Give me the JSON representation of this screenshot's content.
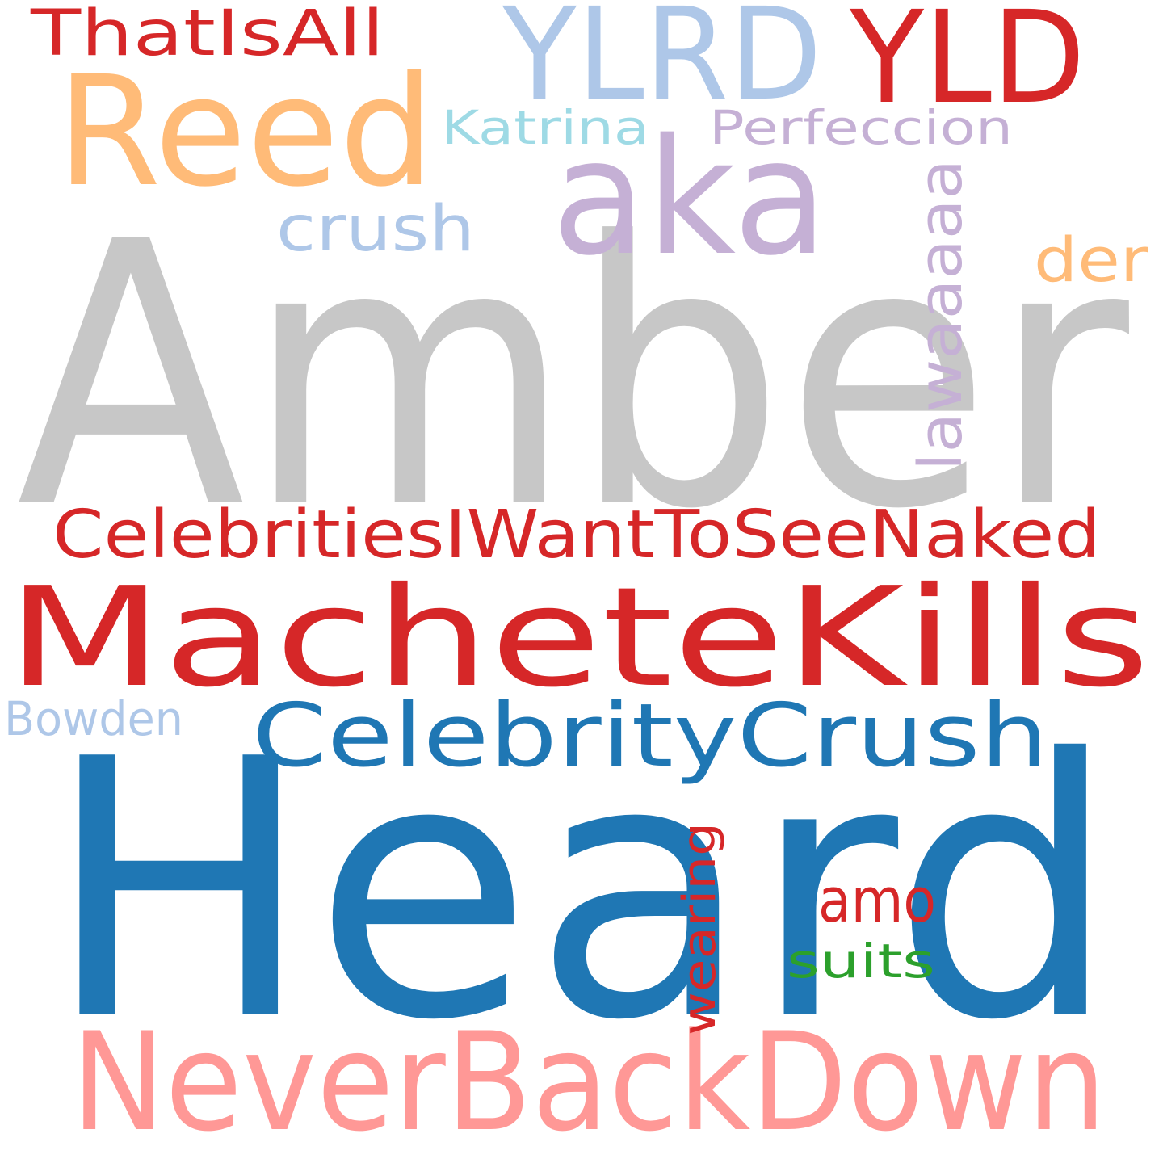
{
  "words": [
    {
      "key": "amber",
      "text": "Amber",
      "color": "#c7c7c7",
      "vertical": false
    },
    {
      "key": "heard",
      "text": "Heard",
      "color": "#1f77b4",
      "vertical": false
    },
    {
      "key": "machetekills",
      "text": "MacheteKills",
      "color": "#d62728",
      "vertical": false
    },
    {
      "key": "neverbackdown",
      "text": "NeverBackDown",
      "color": "#ff9896",
      "vertical": false
    },
    {
      "key": "reed",
      "text": "Reed",
      "color": "#ffbb78",
      "vertical": false
    },
    {
      "key": "aka",
      "text": "aka",
      "color": "#c5b0d5",
      "vertical": false
    },
    {
      "key": "ylrd",
      "text": "YLRD",
      "color": "#aec7e8",
      "vertical": false
    },
    {
      "key": "yld",
      "text": "YLD",
      "color": "#d62728",
      "vertical": false
    },
    {
      "key": "celebritycrush",
      "text": "CelebrityCrush",
      "color": "#1f77b4",
      "vertical": false
    },
    {
      "key": "celebritiesiwanttoseenaked",
      "text": "CelebritiesIWantToSeeNaked",
      "color": "#d62728",
      "vertical": false
    },
    {
      "key": "thatisall",
      "text": "ThatIsAll",
      "color": "#d62728",
      "vertical": false
    },
    {
      "key": "perfeccion",
      "text": "Perfeccion",
      "color": "#c5b0d5",
      "vertical": false
    },
    {
      "key": "katrina",
      "text": "Katrina",
      "color": "#9edae5",
      "vertical": false
    },
    {
      "key": "crush",
      "text": "crush",
      "color": "#aec7e8",
      "vertical": false
    },
    {
      "key": "lawaaaaa",
      "text": "lawaaaaa",
      "color": "#c5b0d5",
      "vertical": true
    },
    {
      "key": "der",
      "text": "der",
      "color": "#ffbb78",
      "vertical": false
    },
    {
      "key": "bowden",
      "text": "Bowden",
      "color": "#aec7e8",
      "vertical": false
    },
    {
      "key": "wearing",
      "text": "wearing",
      "color": "#d62728",
      "vertical": true
    },
    {
      "key": "amo",
      "text": "amo",
      "color": "#d62728",
      "vertical": false
    },
    {
      "key": "suits",
      "text": "suits",
      "color": "#2ca02c",
      "vertical": false
    }
  ]
}
